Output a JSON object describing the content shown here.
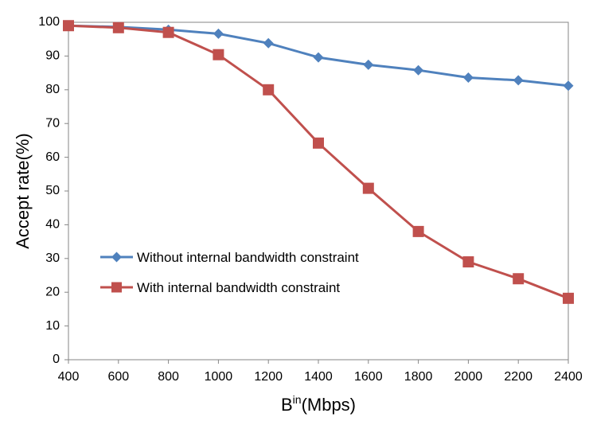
{
  "chart_data": {
    "type": "line",
    "title": "",
    "xlabel_main": "B",
    "xlabel_sup": "in",
    "xlabel_unit": "(Mbps)",
    "ylabel": "Accept rate(%)",
    "x": [
      400,
      600,
      800,
      1000,
      1200,
      1400,
      1600,
      1800,
      2000,
      2200,
      2400
    ],
    "xlim": [
      400,
      2400
    ],
    "ylim": [
      0,
      100
    ],
    "yticks": [
      0,
      10,
      20,
      30,
      40,
      50,
      60,
      70,
      80,
      90,
      100
    ],
    "grid": false,
    "legend_position": "lower-left-inside",
    "series": [
      {
        "name": "Without internal bandwidth constraint",
        "color": "#4f81bd",
        "marker": "diamond",
        "values": [
          99,
          98.6,
          97.8,
          96.6,
          93.8,
          89.6,
          87.4,
          85.8,
          83.6,
          82.8,
          81.2
        ]
      },
      {
        "name": "With internal bandwidth constraint",
        "color": "#c0504d",
        "marker": "square",
        "values": [
          99,
          98.4,
          97,
          90.4,
          80,
          64.2,
          50.8,
          38,
          29,
          24,
          18.2
        ]
      }
    ]
  }
}
